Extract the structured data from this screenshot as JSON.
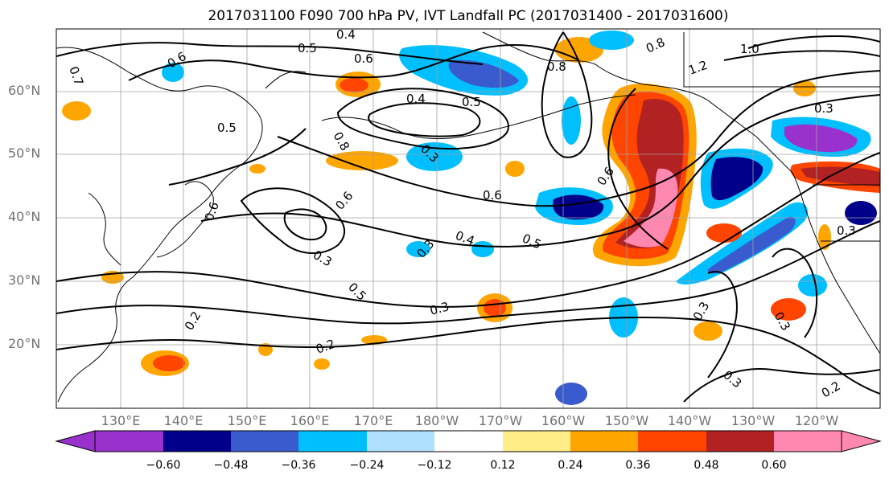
{
  "title": "2017031100 F090 700 hPa PV, IVT Landfall PC (2017031400 - 2017031600)",
  "lat_labels": [
    "60°N",
    "50°N",
    "40°N",
    "30°N",
    "20°N"
  ],
  "lon_labels": [
    "130°E",
    "140°E",
    "150°E",
    "160°E",
    "170°E",
    "180°W",
    "170°W",
    "160°W",
    "150°W",
    "140°W",
    "130°W",
    "120°W"
  ],
  "contour_labels": [
    "0.4",
    "0.5",
    "0.6",
    "0.7",
    "0.8",
    "1.0",
    "1.2",
    "0.3",
    "0.2"
  ],
  "colorbar": {
    "colors": [
      "#9932cc",
      "#00008b",
      "#3a5bcd",
      "#00bfff",
      "#b0e0ff",
      "#ffffff",
      "#ffee88",
      "#ffa500",
      "#ff4500",
      "#b22222",
      "#ff88b0"
    ],
    "tick_labels": [
      "−0.60",
      "−0.48",
      "−0.36",
      "−0.24",
      "−0.12",
      "0.12",
      "0.24",
      "0.36",
      "0.48",
      "0.60"
    ]
  }
}
